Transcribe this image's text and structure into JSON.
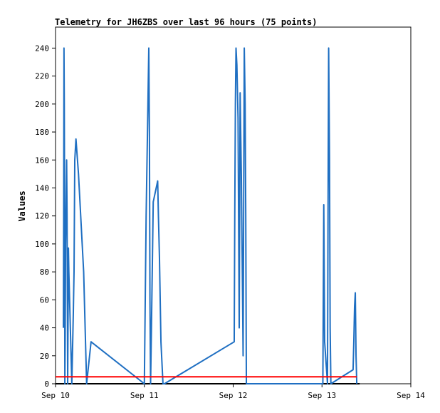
{
  "chart_data": {
    "type": "line",
    "title": "Telemetry for JH6ZBS over last 96 hours (75 points)",
    "xlabel": "",
    "ylabel": "Values",
    "xlim": [
      "2024-09-10T00:00",
      "2024-09-14T00:00"
    ],
    "ylim": [
      0,
      255
    ],
    "x_ticks": [
      "Sep 10",
      "Sep 11",
      "Sep 12",
      "Sep 13",
      "Sep 14"
    ],
    "y_ticks": [
      0,
      20,
      40,
      60,
      80,
      100,
      120,
      140,
      160,
      180,
      200,
      220,
      240
    ],
    "grid": false,
    "legend": "none",
    "series": [
      {
        "color": "#1f6fc2",
        "x": [
          "2024-09-10T02:07",
          "2024-09-10T02:12",
          "2024-09-10T02:17",
          "2024-09-10T02:22",
          "2024-09-10T02:27",
          "2024-09-10T02:31",
          "2024-09-10T02:36",
          "2024-09-10T02:43",
          "2024-09-10T03:00",
          "2024-09-10T03:07",
          "2024-09-10T03:12",
          "2024-09-10T03:17",
          "2024-09-10T03:22",
          "2024-09-10T03:29",
          "2024-09-10T03:36",
          "2024-09-10T04:12",
          "2024-09-10T04:24",
          "2024-09-10T04:48",
          "2024-09-10T05:00",
          "2024-09-10T05:12",
          "2024-09-10T05:31",
          "2024-09-10T06:12",
          "2024-09-10T06:36",
          "2024-09-10T07:12",
          "2024-09-10T07:36",
          "2024-09-10T07:48",
          "2024-09-10T08:24",
          "2024-09-10T09:36",
          "2024-09-11T00:00",
          "2024-09-11T00:29",
          "2024-09-11T00:58",
          "2024-09-11T01:12",
          "2024-09-11T01:22",
          "2024-09-11T01:31",
          "2024-09-11T01:41",
          "2024-09-11T01:55",
          "2024-09-11T02:24",
          "2024-09-11T03:36",
          "2024-09-11T03:48",
          "2024-09-11T04:05",
          "2024-09-11T04:29",
          "2024-09-11T05:02",
          "2024-09-11T05:26",
          "2024-09-12T00:17",
          "2024-09-12T00:26",
          "2024-09-12T00:36",
          "2024-09-12T00:46",
          "2024-09-12T01:00",
          "2024-09-12T01:19",
          "2024-09-12T01:38",
          "2024-09-12T01:53",
          "2024-09-12T02:12",
          "2024-09-12T02:26",
          "2024-09-12T02:41",
          "2024-09-12T03:00",
          "2024-09-12T03:14",
          "2024-09-12T03:24",
          "2024-09-12T03:34",
          "2024-09-12T03:48",
          "2024-09-12T04:00",
          "2024-09-13T00:14",
          "2024-09-13T00:29",
          "2024-09-13T00:43",
          "2024-09-13T01:29",
          "2024-09-13T01:38",
          "2024-09-13T01:48",
          "2024-09-13T02:02",
          "2024-09-13T02:12",
          "2024-09-13T02:24",
          "2024-09-13T08:24",
          "2024-09-13T08:36",
          "2024-09-13T08:48",
          "2024-09-13T09:00",
          "2024-09-13T09:12",
          "2024-09-13T09:24"
        ],
        "y": [
          40,
          120,
          240,
          200,
          120,
          0,
          30,
          100,
          160,
          120,
          60,
          0,
          40,
          97,
          80,
          20,
          0,
          50,
          80,
          160,
          175,
          150,
          130,
          100,
          80,
          60,
          0,
          30,
          0,
          120,
          200,
          240,
          180,
          60,
          0,
          40,
          130,
          145,
          120,
          90,
          30,
          0,
          0,
          30,
          120,
          200,
          240,
          228,
          190,
          40,
          208,
          150,
          90,
          20,
          240,
          200,
          120,
          0,
          0,
          0,
          0,
          128,
          30,
          0,
          120,
          240,
          160,
          40,
          0,
          10,
          30,
          55,
          65,
          20,
          0
        ]
      },
      {
        "color": "#ff0000",
        "x": [
          "2024-09-10T00:00",
          "2024-09-13T09:24"
        ],
        "y": [
          5,
          5
        ]
      }
    ]
  }
}
